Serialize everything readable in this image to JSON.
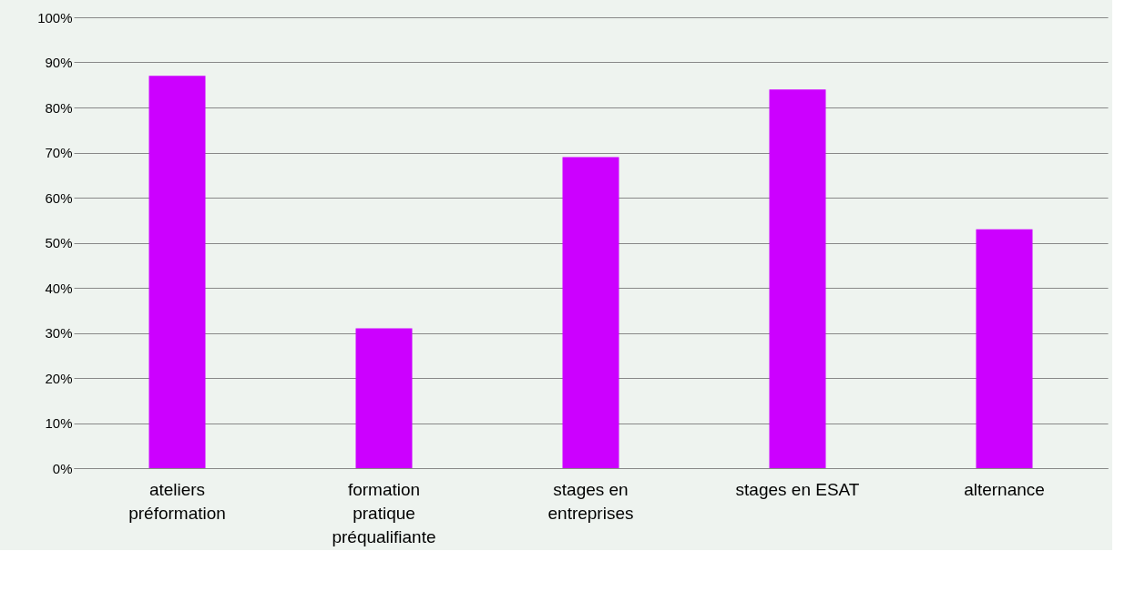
{
  "chart_data": {
    "type": "bar",
    "categories": [
      "ateliers préformation",
      "formation pratique préqualifiante",
      "stages en entreprises",
      "stages en ESAT",
      "alternance"
    ],
    "values": [
      87,
      31,
      69,
      84,
      53
    ],
    "color": "#cc00ff",
    "ylim": [
      0,
      100
    ],
    "yticks": [
      {
        "value": 0,
        "label": "0%"
      },
      {
        "value": 10,
        "label": "10%"
      },
      {
        "value": 20,
        "label": "20%"
      },
      {
        "value": 30,
        "label": "30%"
      },
      {
        "value": 40,
        "label": "40%"
      },
      {
        "value": 50,
        "label": "50%"
      },
      {
        "value": 60,
        "label": "60%"
      },
      {
        "value": 70,
        "label": "70%"
      },
      {
        "value": 80,
        "label": "80%"
      },
      {
        "value": 90,
        "label": "90%"
      },
      {
        "value": 100,
        "label": "100%"
      }
    ],
    "grid": "y"
  }
}
